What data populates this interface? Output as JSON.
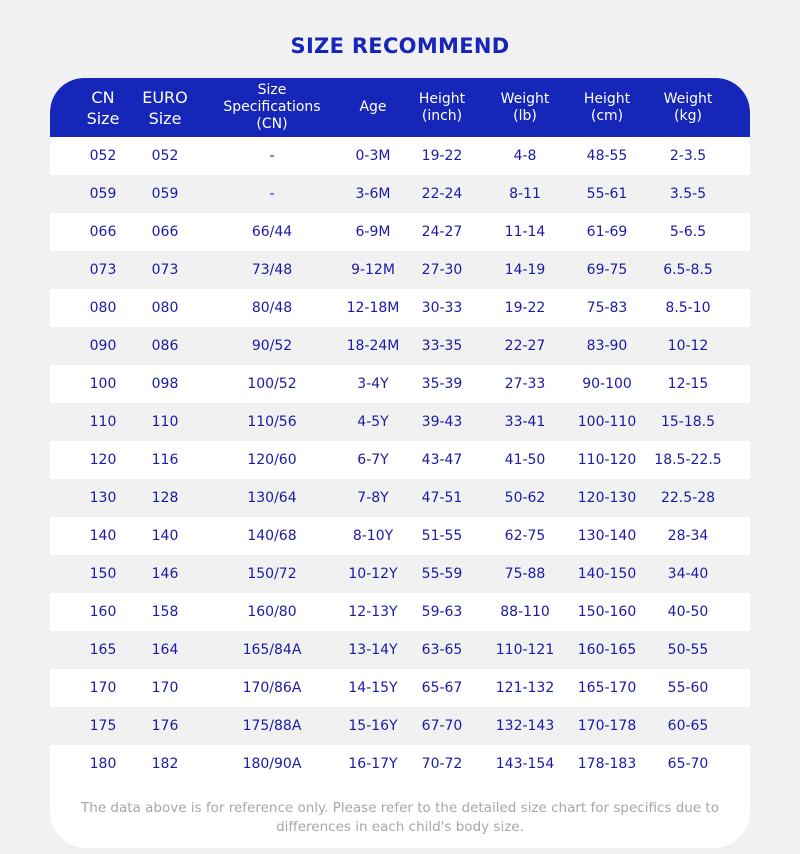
{
  "title": "SIZE RECOMMEND",
  "headers": [
    "CN\nSize",
    "EURO\nSize",
    "Size\nSpecifications\n(CN)",
    "Age",
    "Height\n(inch)",
    "Weight\n(lb)",
    "Height\n(cm)",
    "Weight\n(kg)"
  ],
  "rows": [
    [
      "052",
      "052",
      "-",
      "0-3M",
      "19-22",
      "4-8",
      "48-55",
      "2-3.5"
    ],
    [
      "059",
      "059",
      "-",
      "3-6M",
      "22-24",
      "8-11",
      "55-61",
      "3.5-5"
    ],
    [
      "066",
      "066",
      "66/44",
      "6-9M",
      "24-27",
      "11-14",
      "61-69",
      "5-6.5"
    ],
    [
      "073",
      "073",
      "73/48",
      "9-12M",
      "27-30",
      "14-19",
      "69-75",
      "6.5-8.5"
    ],
    [
      "080",
      "080",
      "80/48",
      "12-18M",
      "30-33",
      "19-22",
      "75-83",
      "8.5-10"
    ],
    [
      "090",
      "086",
      "90/52",
      "18-24M",
      "33-35",
      "22-27",
      "83-90",
      "10-12"
    ],
    [
      "100",
      "098",
      "100/52",
      "3-4Y",
      "35-39",
      "27-33",
      "90-100",
      "12-15"
    ],
    [
      "110",
      "110",
      "110/56",
      "4-5Y",
      "39-43",
      "33-41",
      "100-110",
      "15-18.5"
    ],
    [
      "120",
      "116",
      "120/60",
      "6-7Y",
      "43-47",
      "41-50",
      "110-120",
      "18.5-22.5"
    ],
    [
      "130",
      "128",
      "130/64",
      "7-8Y",
      "47-51",
      "50-62",
      "120-130",
      "22.5-28"
    ],
    [
      "140",
      "140",
      "140/68",
      "8-10Y",
      "51-55",
      "62-75",
      "130-140",
      "28-34"
    ],
    [
      "150",
      "146",
      "150/72",
      "10-12Y",
      "55-59",
      "75-88",
      "140-150",
      "34-40"
    ],
    [
      "160",
      "158",
      "160/80",
      "12-13Y",
      "59-63",
      "88-110",
      "150-160",
      "40-50"
    ],
    [
      "165",
      "164",
      "165/84A",
      "13-14Y",
      "63-65",
      "110-121",
      "160-165",
      "50-55"
    ],
    [
      "170",
      "170",
      "170/86A",
      "14-15Y",
      "65-67",
      "121-132",
      "165-170",
      "55-60"
    ],
    [
      "175",
      "176",
      "175/88A",
      "15-16Y",
      "67-70",
      "132-143",
      "170-178",
      "60-65"
    ],
    [
      "180",
      "182",
      "180/90A",
      "16-17Y",
      "70-72",
      "143-154",
      "178-183",
      "65-70"
    ]
  ],
  "footer": "The data above is for reference only. Please refer to the detailed size chart for specifics due to differences in each child's body size.",
  "colors": {
    "header_bg": "#1526b8",
    "text": "#1a1aa6",
    "alt_row": "#f1f1f1",
    "footer_text": "#a7a7a7"
  }
}
